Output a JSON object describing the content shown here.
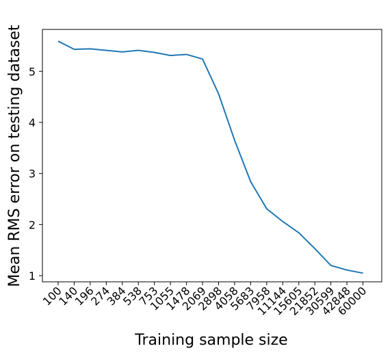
{
  "chart_data": {
    "type": "line",
    "title": "",
    "xlabel": "Training sample size",
    "ylabel": "Mean RMS error on testing dataset",
    "categories": [
      "100",
      "140",
      "196",
      "274",
      "384",
      "538",
      "753",
      "1055",
      "1478",
      "2069",
      "2898",
      "4058",
      "5683",
      "7958",
      "11144",
      "15605",
      "21852",
      "30599",
      "42848",
      "60000"
    ],
    "series": [
      {
        "values": [
          5.59,
          5.43,
          5.44,
          5.41,
          5.38,
          5.41,
          5.37,
          5.31,
          5.33,
          5.24,
          4.56,
          3.65,
          2.84,
          2.31,
          2.06,
          1.84,
          1.53,
          1.2,
          1.11,
          1.05
        ],
        "color": "#1f77b4"
      }
    ],
    "yticks": [
      1,
      2,
      3,
      4,
      5
    ],
    "ylim": [
      0.88,
      5.82
    ],
    "grid": false,
    "legend": "none"
  }
}
